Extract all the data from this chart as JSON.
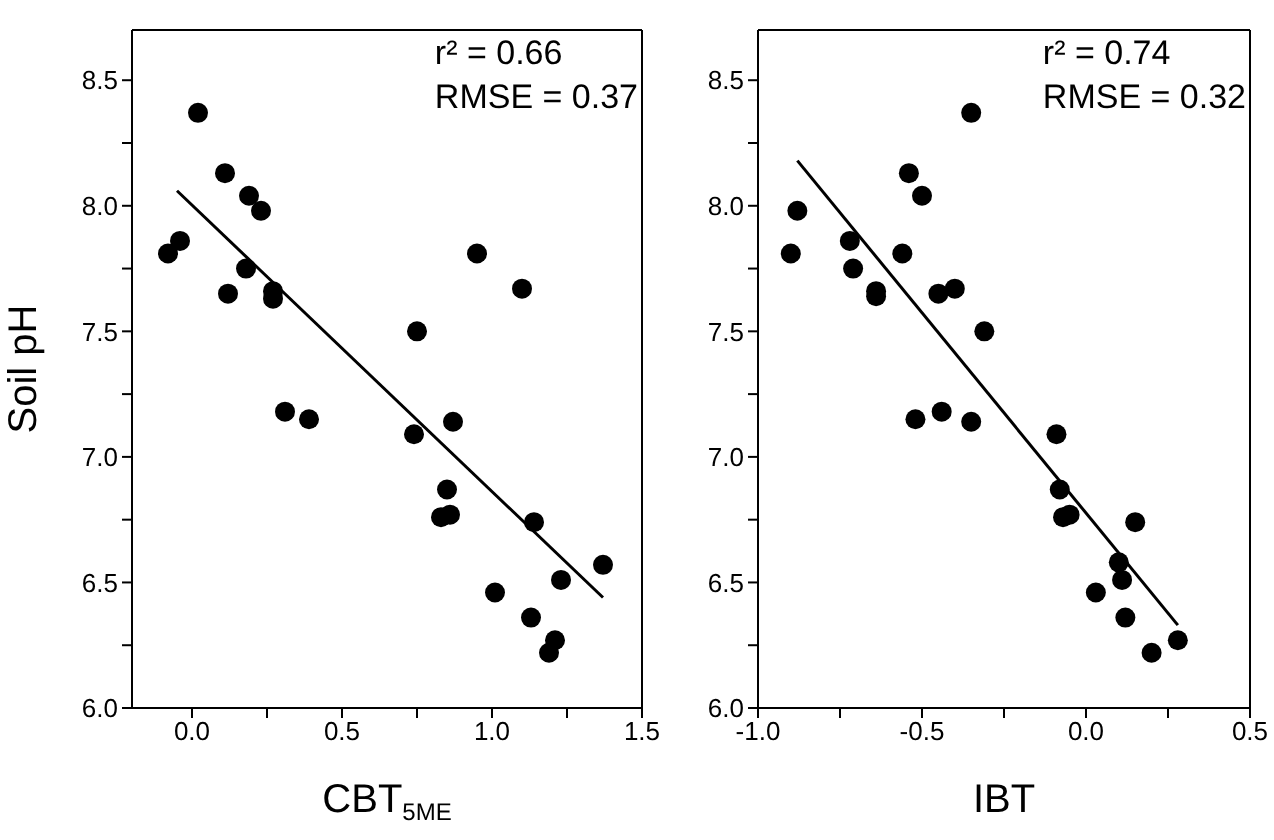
{
  "chart_data": [
    {
      "type": "scatter",
      "xlabel": "CBT$_{5ME}$",
      "ylabel": "Soil pH",
      "xlim": [
        -0.2,
        1.5
      ],
      "ylim": [
        6,
        8.7
      ],
      "xticks": [
        {
          "value": 0,
          "label": "0.0"
        },
        {
          "value": 0.25,
          "label": null
        },
        {
          "value": 0.5,
          "label": "0.5"
        },
        {
          "value": 0.75,
          "label": null
        },
        {
          "value": 1,
          "label": "1.0"
        },
        {
          "value": 1.25,
          "label": null
        },
        {
          "value": 1.5,
          "label": "1.5"
        }
      ],
      "yticks": [
        {
          "value": 6,
          "label": "6.0"
        },
        {
          "value": 6.25,
          "label": null
        },
        {
          "value": 6.5,
          "label": "6.5"
        },
        {
          "value": 6.75,
          "label": null
        },
        {
          "value": 7,
          "label": "7.0"
        },
        {
          "value": 7.25,
          "label": null
        },
        {
          "value": 7.5,
          "label": "7.5"
        },
        {
          "value": 7.75,
          "label": null
        },
        {
          "value": 8,
          "label": "8.0"
        },
        {
          "value": 8.25,
          "label": null
        },
        {
          "value": 8.5,
          "label": "8.5"
        }
      ],
      "annotations": [
        "r² = 0.66",
        "RMSE = 0.37"
      ],
      "series": [
        {
          "color": "#000000",
          "marker": "circle",
          "x": [
            -0.08,
            -0.04,
            0.02,
            0.11,
            0.12,
            0.18,
            0.19,
            0.23,
            0.27,
            0.27,
            0.31,
            0.39,
            0.74,
            0.75,
            0.83,
            0.85,
            0.86,
            0.87,
            0.95,
            1.01,
            1.1,
            1.13,
            1.14,
            1.19,
            1.21,
            1.23,
            1.37
          ],
          "values": [
            7.81,
            7.86,
            8.37,
            8.13,
            7.65,
            7.75,
            8.04,
            7.98,
            7.66,
            7.63,
            7.18,
            7.15,
            7.09,
            7.5,
            6.76,
            6.87,
            6.77,
            7.14,
            7.81,
            6.46,
            7.67,
            6.36,
            6.74,
            6.22,
            6.27,
            6.51,
            6.57
          ]
        },
        {
          "type": "line",
          "color": "#000000",
          "marker": "none",
          "x": [
            -0.05,
            1.37
          ],
          "values": [
            8.06,
            6.44
          ]
        }
      ]
    },
    {
      "type": "scatter",
      "xlabel": "IBT",
      "xlim": [
        -1,
        0.5
      ],
      "ylim": [
        6,
        8.7
      ],
      "xticks": [
        {
          "value": -1,
          "label": "-1.0"
        },
        {
          "value": -0.75,
          "label": null
        },
        {
          "value": -0.5,
          "label": "-0.5"
        },
        {
          "value": -0.25,
          "label": null
        },
        {
          "value": 0,
          "label": "0.0"
        },
        {
          "value": 0.25,
          "label": null
        },
        {
          "value": 0.5,
          "label": "0.5"
        }
      ],
      "yticks": [
        {
          "value": 6,
          "label": "6.0"
        },
        {
          "value": 6.25,
          "label": null
        },
        {
          "value": 6.5,
          "label": "6.5"
        },
        {
          "value": 6.75,
          "label": null
        },
        {
          "value": 7,
          "label": "7.0"
        },
        {
          "value": 7.25,
          "label": null
        },
        {
          "value": 7.5,
          "label": "7.5"
        },
        {
          "value": 7.75,
          "label": null
        },
        {
          "value": 8,
          "label": "8.0"
        },
        {
          "value": 8.25,
          "label": null
        },
        {
          "value": 8.5,
          "label": "8.5"
        }
      ],
      "annotations": [
        "r² = 0.74",
        "RMSE = 0.32"
      ],
      "series": [
        {
          "color": "#000000",
          "marker": "circle",
          "x": [
            -0.9,
            -0.88,
            -0.72,
            -0.71,
            -0.64,
            -0.64,
            -0.56,
            -0.54,
            -0.52,
            -0.5,
            -0.45,
            -0.44,
            -0.4,
            -0.35,
            -0.35,
            -0.31,
            -0.09,
            -0.08,
            -0.07,
            -0.05,
            0.03,
            0.1,
            0.11,
            0.12,
            0.15,
            0.2,
            0.28
          ],
          "values": [
            7.81,
            7.98,
            7.86,
            7.75,
            7.66,
            7.64,
            7.81,
            8.13,
            7.15,
            8.04,
            7.65,
            7.18,
            7.67,
            8.37,
            7.14,
            7.5,
            7.09,
            6.87,
            6.76,
            6.77,
            6.46,
            6.58,
            6.51,
            6.36,
            6.74,
            6.22,
            6.27
          ]
        },
        {
          "type": "line",
          "color": "#000000",
          "marker": "none",
          "x": [
            -0.88,
            0.28
          ],
          "values": [
            8.18,
            6.33
          ]
        }
      ]
    }
  ]
}
